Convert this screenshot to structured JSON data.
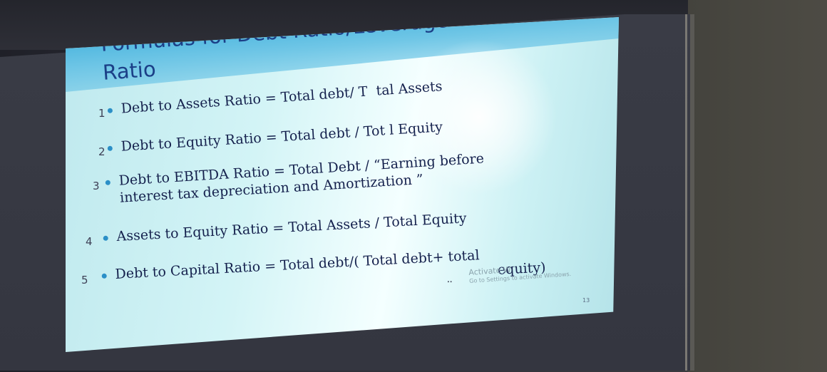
{
  "slide": {
    "title_line1": "Formulas for Debt Ratio/Leverage",
    "title_line2": "Ratio",
    "items": [
      {
        "hand_number": "1",
        "text": "Debt to Assets Ratio = Total debt/ T  tal Assets"
      },
      {
        "hand_number": "2",
        "text": "Debt to Equity Ratio = Total debt / Tot l Equity"
      },
      {
        "hand_number": "3",
        "text": "Debt to EBITDA Ratio = Total Debt / “Earning before",
        "text_line2": "interest tax depreciation and Amortization ”"
      },
      {
        "hand_number": "4",
        "text": "Assets to Equity Ratio = Total Assets / Total Equity"
      },
      {
        "hand_number": "5",
        "text": "Debt to Capital Ratio = Total debt/( Total debt+ total",
        "text_line2": "equity)"
      }
    ],
    "watermark_line1": "Activate W",
    "watermark_line2": "Go to Settings to activate Windows.",
    "slide_number": "13"
  },
  "colors": {
    "title": "#1b3f87",
    "body_text": "#15214d",
    "bullet": "#2b8fc7",
    "screen_light": "#d3f4f6"
  }
}
